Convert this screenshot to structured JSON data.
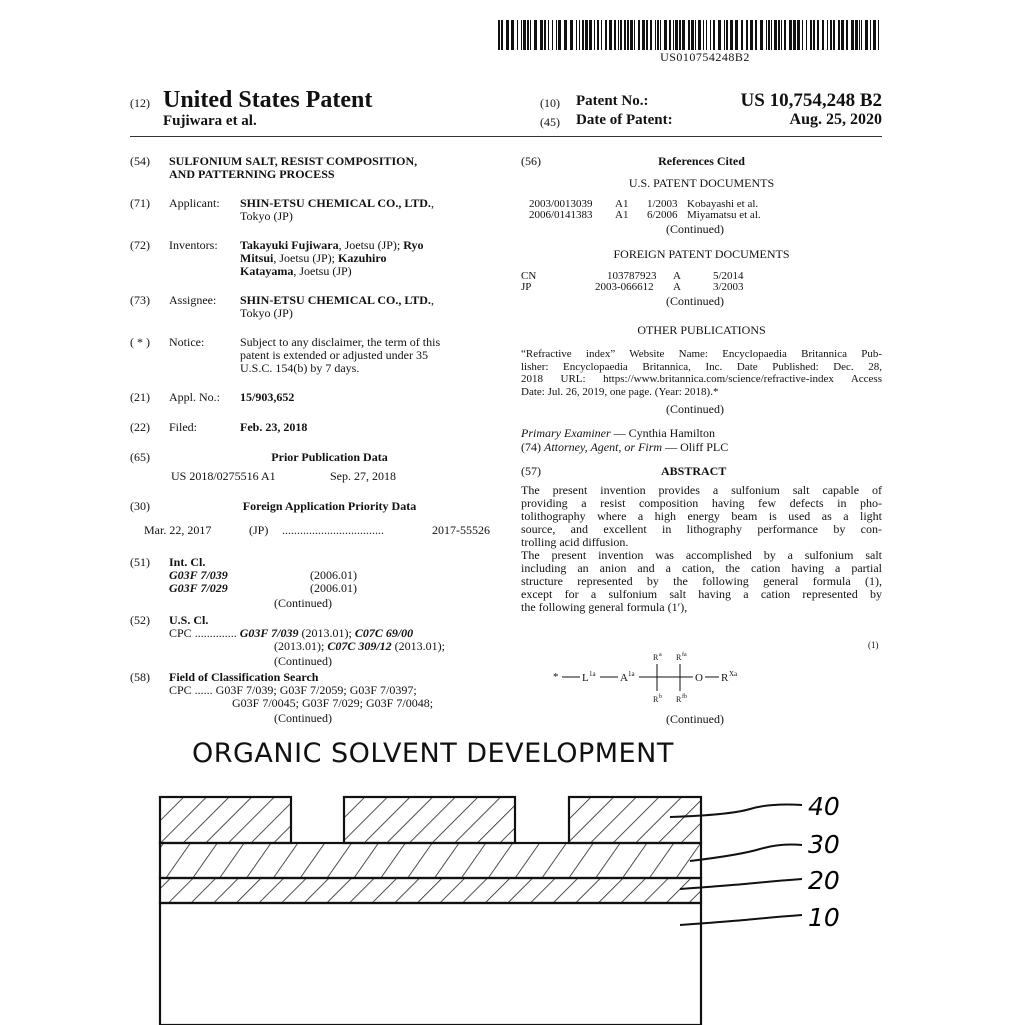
{
  "barcode": {
    "number": "US010754248B2"
  },
  "header": {
    "code12": "(12)",
    "title": "United States Patent",
    "authors": "Fujiwara et al.",
    "code10": "(10)",
    "patent_no_label": "Patent No.:",
    "patent_no": "US 10,754,248 B2",
    "code45": "(45)",
    "date_label": "Date of Patent:",
    "date": "Aug. 25, 2020"
  },
  "left": {
    "f54": {
      "code": "(54)",
      "title1": "SULFONIUM SALT, RESIST COMPOSITION,",
      "title2": "AND PATTERNING PROCESS"
    },
    "f71": {
      "code": "(71)",
      "label": "Applicant:",
      "name": "SHIN-ETSU CHEMICAL CO., LTD.",
      "comma": ",",
      "city": "Tokyo (JP)"
    },
    "f72": {
      "code": "(72)",
      "label": "Inventors:",
      "inv1": "Takayuki Fujiwara",
      "loc1": ", Joetsu (JP); ",
      "inv2a": "Ryo",
      "inv2b": "Mitsui",
      "loc2": ", Joetsu (JP); ",
      "inv3a": "Kazuhiro",
      "inv3b": "Katayama",
      "loc3": ", Joetsu (JP)"
    },
    "f73": {
      "code": "(73)",
      "label": "Assignee:",
      "name": "SHIN-ETSU CHEMICAL CO., LTD.",
      "comma": ",",
      "city": "Tokyo (JP)"
    },
    "notice": {
      "code": "( * )",
      "label": "Notice:",
      "l1": "Subject to any disclaimer, the term of this",
      "l2": "patent is extended or adjusted under 35",
      "l3": "U.S.C. 154(b) by 7 days."
    },
    "f21": {
      "code": "(21)",
      "label": "Appl. No.:",
      "value": "15/903,652"
    },
    "f22": {
      "code": "(22)",
      "label": "Filed:",
      "value": "Feb. 23, 2018"
    },
    "f65": {
      "code": "(65)",
      "heading": "Prior Publication Data",
      "pub": "US 2018/0275516 A1",
      "date": "Sep. 27, 2018"
    },
    "f30": {
      "code": "(30)",
      "heading": "Foreign Application Priority Data",
      "date": "Mar. 22, 2017",
      "country": "(JP)",
      "dots": "..................................",
      "number": "2017-55526"
    },
    "f51": {
      "code": "(51)",
      "label": "Int. Cl.",
      "c1": "G03F 7/039",
      "d1": "(2006.01)",
      "c2": "G03F 7/029",
      "d2": "(2006.01)",
      "cont": "(Continued)"
    },
    "f52": {
      "code": "(52)",
      "label": "U.S. Cl.",
      "cpc": "CPC",
      "dots": "..............",
      "a": "G03F 7/039",
      "a2": " (2013.01); ",
      "b": "C07C 69/00",
      "c0": "(2013.01); ",
      "d": "C07C 309/12",
      "e": " (2013.01);",
      "cont": "(Continued)"
    },
    "f58": {
      "code": "(58)",
      "label": "Field of Classification Search",
      "l1": "CPC ...... G03F 7/039; G03F 7/2059; G03F 7/0397;",
      "l2": "G03F 7/0045; G03F 7/029; G03F 7/0048;",
      "cont": "(Continued)"
    }
  },
  "right": {
    "refs": {
      "code": "(56)",
      "heading": "References Cited",
      "us_heading": "U.S. PATENT DOCUMENTS",
      "us": [
        {
          "num": "2003/0013039",
          "kind": "A1",
          "date": "1/2003",
          "name": "Kobayashi et al."
        },
        {
          "num": "2006/0141383",
          "kind": "A1",
          "date": "6/2006",
          "name": "Miyamatsu et al."
        }
      ],
      "us_cont": "(Continued)",
      "foreign_heading": "FOREIGN PATENT DOCUMENTS",
      "foreign": [
        {
          "country": "CN",
          "num": "103787923",
          "kind": "A",
          "date": "5/2014"
        },
        {
          "country": "JP",
          "num": "2003-066612",
          "kind": "A",
          "date": "3/2003"
        }
      ],
      "foreign_cont": "(Continued)",
      "other_heading": "OTHER PUBLICATIONS",
      "other": [
        "“Refractive index” Website Name: Encyclopaedia Britannica Pub-",
        "lisher: Encyclopaedia Britannica, Inc. Date Published: Dec. 28,",
        "2018 URL: https://www.britannica.com/science/refractive-index Access",
        "Date: Jul. 26, 2019, one page. (Year: 2018).*"
      ],
      "other_cont": "(Continued)"
    },
    "examiner_label": "Primary Examiner",
    "examiner": " — Cynthia Hamilton",
    "attorney_code": "(74)",
    "attorney_label": "Attorney, Agent, or Firm",
    "attorney": " — Oliff PLC",
    "abstract": {
      "code": "(57)",
      "heading": "ABSTRACT",
      "p1": [
        "The present invention provides a sulfonium salt capable of",
        "providing a resist composition having few defects in pho-",
        "tolithography where a high energy beam is used as a light",
        "source, and excellent in lithography performance by con-",
        "trolling acid diffusion."
      ],
      "p2": [
        "The present invention was accomplished by a sulfonium salt",
        "including an anion and a cation, the cation having a partial",
        "structure represented by the following general formula (1),",
        "except for a sulfonium salt having a cation represented by",
        "the following general formula (1′),"
      ],
      "formula_no": "(1)",
      "cont": "(Continued)"
    },
    "formula": {
      "star": "*",
      "L": "L",
      "L_sup": "1a",
      "A": "A",
      "A_sup": "1a",
      "O": "O",
      "R": "R",
      "Ra": "a",
      "Rfa": "fa",
      "Rb": "b",
      "Rfb": "fb",
      "Rxa": "Xa"
    }
  },
  "figure": {
    "title": "ORGANIC SOLVENT DEVELOPMENT",
    "labels": [
      "40",
      "30",
      "20",
      "10"
    ]
  }
}
